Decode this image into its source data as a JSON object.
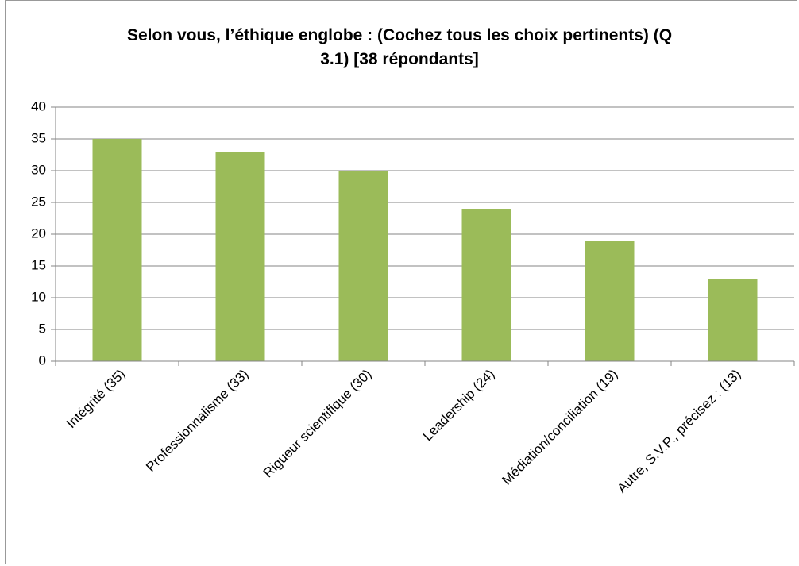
{
  "chart_data": {
    "type": "bar",
    "title": "Selon vous, l’éthique englobe : (Cochez tous les choix pertinents) (Q 3.1) [38 répondants]",
    "categories": [
      "Intégrité (35)",
      "Professionnalisme (33)",
      "Rigueur scientifique (30)",
      "Leadership (24)",
      "Médiation/conciliation (19)",
      "Autre, S.V.P., précisez : (13)"
    ],
    "values": [
      35,
      33,
      30,
      24,
      19,
      13
    ],
    "color": "#9bbb59",
    "ylim": [
      0,
      40
    ],
    "yticks": [
      0,
      5,
      10,
      15,
      20,
      25,
      30,
      35,
      40
    ],
    "grid": true
  }
}
